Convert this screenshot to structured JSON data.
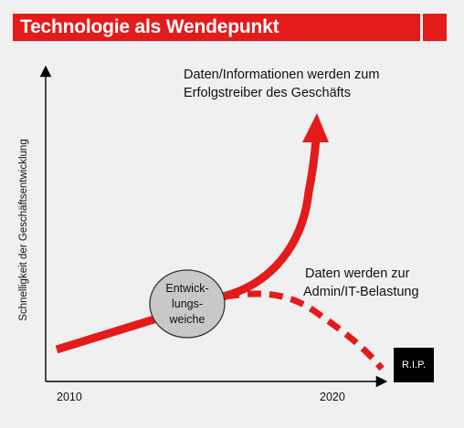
{
  "title": "Technologie als Wendepunkt",
  "y_axis_label": "Schnelligkeit der Geschäftsentwicklung",
  "x_ticks": [
    "2010",
    "2020"
  ],
  "node_label_lines": [
    "Entwick-",
    "lungs-",
    "weiche"
  ],
  "upper_outcome_lines": [
    "Daten/Informationen werden zum",
    "Erfolgstreiber des Geschäfts"
  ],
  "lower_outcome_lines": [
    "Daten werden zur",
    "Admin/IT-Belastung"
  ],
  "end_marker": "R.I.P.",
  "colors": {
    "accent": "#e41b1b",
    "background": "#f0f0f0",
    "node_fill": "#c8c8c8",
    "marker_fill": "#000000"
  }
}
